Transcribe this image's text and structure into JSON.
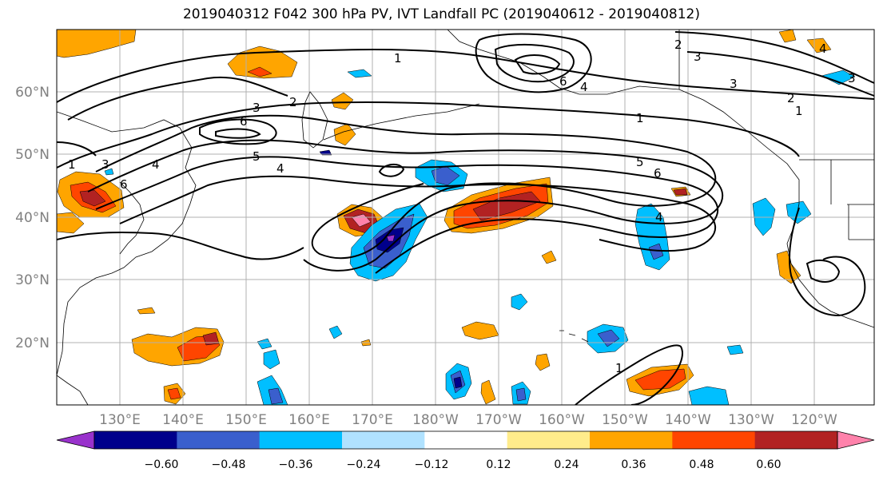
{
  "title": "2019040312 F042 300 hPa PV, IVT Landfall PC (2019040612 - 2019040812)",
  "lon_labels": [
    "130°E",
    "140°E",
    "150°E",
    "160°E",
    "170°E",
    "180°W",
    "170°W",
    "160°W",
    "150°W",
    "140°W",
    "130°W",
    "120°W"
  ],
  "lat_labels": [
    "60°N",
    "50°N",
    "40°N",
    "30°N",
    "20°N"
  ],
  "colorbar": {
    "colors": [
      "#9932cc",
      "#00008b",
      "#3a5fcd",
      "#00bfff",
      "#b0e2ff",
      "#ffffff",
      "#ffec8b",
      "#ffa500",
      "#ff4500",
      "#b22222",
      "#ff82ab"
    ],
    "tick_labels": [
      "−0.60",
      "−0.48",
      "−0.36",
      "−0.24",
      "−0.12",
      "0.12",
      "0.24",
      "0.36",
      "0.48",
      "0.60"
    ]
  },
  "contour_labels": [
    "1",
    "2",
    "3",
    "3",
    "4",
    "5",
    "6",
    "1",
    "2",
    "3",
    "3",
    "6",
    "4",
    "1",
    "2",
    "1",
    "5",
    "6",
    "4",
    "4",
    "3",
    "6",
    "4",
    "1"
  ],
  "colors": {
    "grid": "#b0b0b0",
    "contour": "#000000",
    "frame": "#000000",
    "tick_label": "#808080"
  }
}
